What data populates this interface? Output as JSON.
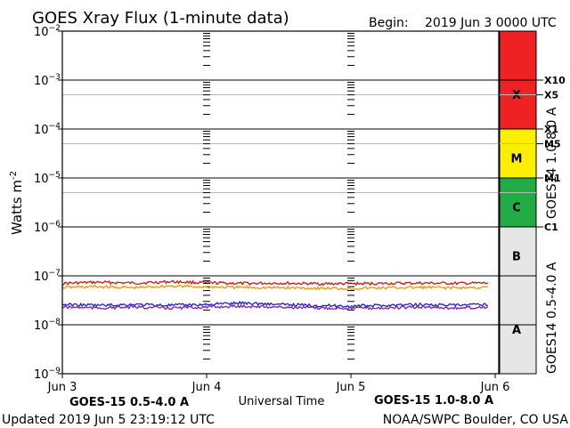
{
  "title": "GOES Xray Flux (1-minute data)",
  "begin_label": "Begin:",
  "begin_value": "2019 Jun 3 0000 UTC",
  "updated": "Updated 2019 Jun  5 23:19:12 UTC",
  "credit": "NOAA/SWPC Boulder, CO USA",
  "colors": {
    "long_channel": "#dd1111",
    "short_channel": "#1a22cc",
    "goes14_long": "#e59a00",
    "goes14_short": "#7a1fa8",
    "x_band": "#ee2222",
    "m_band": "#ffee00",
    "c_band": "#22aa44",
    "low_band": "#e6e6e6"
  },
  "chart_data": {
    "type": "line",
    "title": "GOES Xray Flux (1-minute data)",
    "xlabel": "Universal Time",
    "ylabel": "Watts m^-2",
    "y_scale": "log",
    "ylim": [
      1e-09,
      0.01
    ],
    "xlim": [
      0,
      3
    ],
    "x_ticks": [
      {
        "value": 0,
        "label": "Jun 3"
      },
      {
        "value": 1,
        "label": "Jun 4"
      },
      {
        "value": 2,
        "label": "Jun 5"
      },
      {
        "value": 3,
        "label": "Jun 6"
      }
    ],
    "y_tick_exponents": [
      -2,
      -3,
      -4,
      -5,
      -6,
      -7,
      -8,
      -9
    ],
    "y_tick_base": "10",
    "series": [
      {
        "name": "GOES-15 1.0-8.0 A",
        "color": "#dd1111",
        "level": 7e-08,
        "x": [
          0,
          0.25,
          0.5,
          0.75,
          1.0,
          1.25,
          1.5,
          1.75,
          2.0,
          2.25,
          2.5,
          2.75,
          2.95
        ],
        "y": [
          7e-08,
          7.4e-08,
          7.1e-08,
          7.6e-08,
          7.2e-08,
          7e-08,
          7.1e-08,
          6.9e-08,
          6.9e-08,
          7e-08,
          7.1e-08,
          7e-08,
          7.1e-08
        ]
      },
      {
        "name": "GOES14 1.0-8.0 A",
        "color": "#e59a00",
        "level": 5.8e-08,
        "x": [
          0,
          0.25,
          0.5,
          0.75,
          1.0,
          1.25,
          1.5,
          1.75,
          2.0,
          2.25,
          2.5,
          2.75,
          2.95
        ],
        "y": [
          5.8e-08,
          6e-08,
          5.7e-08,
          6.2e-08,
          5.9e-08,
          5.8e-08,
          5.7e-08,
          5.6e-08,
          5.5e-08,
          5.7e-08,
          5.8e-08,
          5.7e-08,
          5.8e-08
        ]
      },
      {
        "name": "GOES-15 0.5-4.0 A",
        "color": "#1a22cc",
        "level": 2.6e-08,
        "x": [
          0,
          0.25,
          0.5,
          0.75,
          1.0,
          1.25,
          1.5,
          1.75,
          2.0,
          2.25,
          2.5,
          2.75,
          2.95
        ],
        "y": [
          2.6e-08,
          2.5e-08,
          2.6e-08,
          2.5e-08,
          2.6e-08,
          2.8e-08,
          2.6e-08,
          2.5e-08,
          2.4e-08,
          2.5e-08,
          2.6e-08,
          2.5e-08,
          2.6e-08
        ]
      },
      {
        "name": "GOES14 0.5-4.0 A",
        "color": "#7a1fa8",
        "level": 2.3e-08,
        "x": [
          0,
          0.25,
          0.5,
          0.75,
          1.0,
          1.25,
          1.5,
          1.75,
          2.0,
          2.25,
          2.5,
          2.75,
          2.95
        ],
        "y": [
          2.3e-08,
          2.2e-08,
          2.3e-08,
          2.2e-08,
          2.3e-08,
          2.4e-08,
          2.3e-08,
          2.2e-08,
          2.2e-08,
          2.2e-08,
          2.3e-08,
          2.2e-08,
          2.3e-08
        ]
      }
    ],
    "legend": {
      "bottom_left": "GOES-15 0.5-4.0 A",
      "bottom_right": "GOES-15 1.0-8.0 A",
      "right_top": "GOES14 1.0-8.0 A",
      "right_bottom": "GOES14 0.5-4.0 A"
    },
    "flare_bands": [
      {
        "label": "X",
        "from": 0.0001,
        "to": 0.01,
        "color": "#ee2222"
      },
      {
        "label": "M",
        "from": 1e-05,
        "to": 0.0001,
        "color": "#ffee00"
      },
      {
        "label": "C",
        "from": 1e-06,
        "to": 1e-05,
        "color": "#22aa44"
      },
      {
        "label": "B",
        "from": 1e-07,
        "to": 1e-06,
        "color": "#e6e6e6"
      },
      {
        "label": "A",
        "from": 1e-09,
        "to": 1e-07,
        "color": "#e6e6e6"
      }
    ],
    "flare_markers": [
      {
        "label": "X10",
        "value": 0.001
      },
      {
        "label": "X5",
        "value": 0.0005
      },
      {
        "label": "X1",
        "value": 0.0001
      },
      {
        "label": "M5",
        "value": 5e-05
      },
      {
        "label": "M1",
        "value": 1e-05
      },
      {
        "label": "C1",
        "value": 1e-06
      }
    ],
    "reference_lines": [
      0.001,
      0.0005,
      0.0001,
      5e-05,
      1e-05,
      5e-06,
      1e-06,
      1e-07,
      1e-08
    ]
  }
}
